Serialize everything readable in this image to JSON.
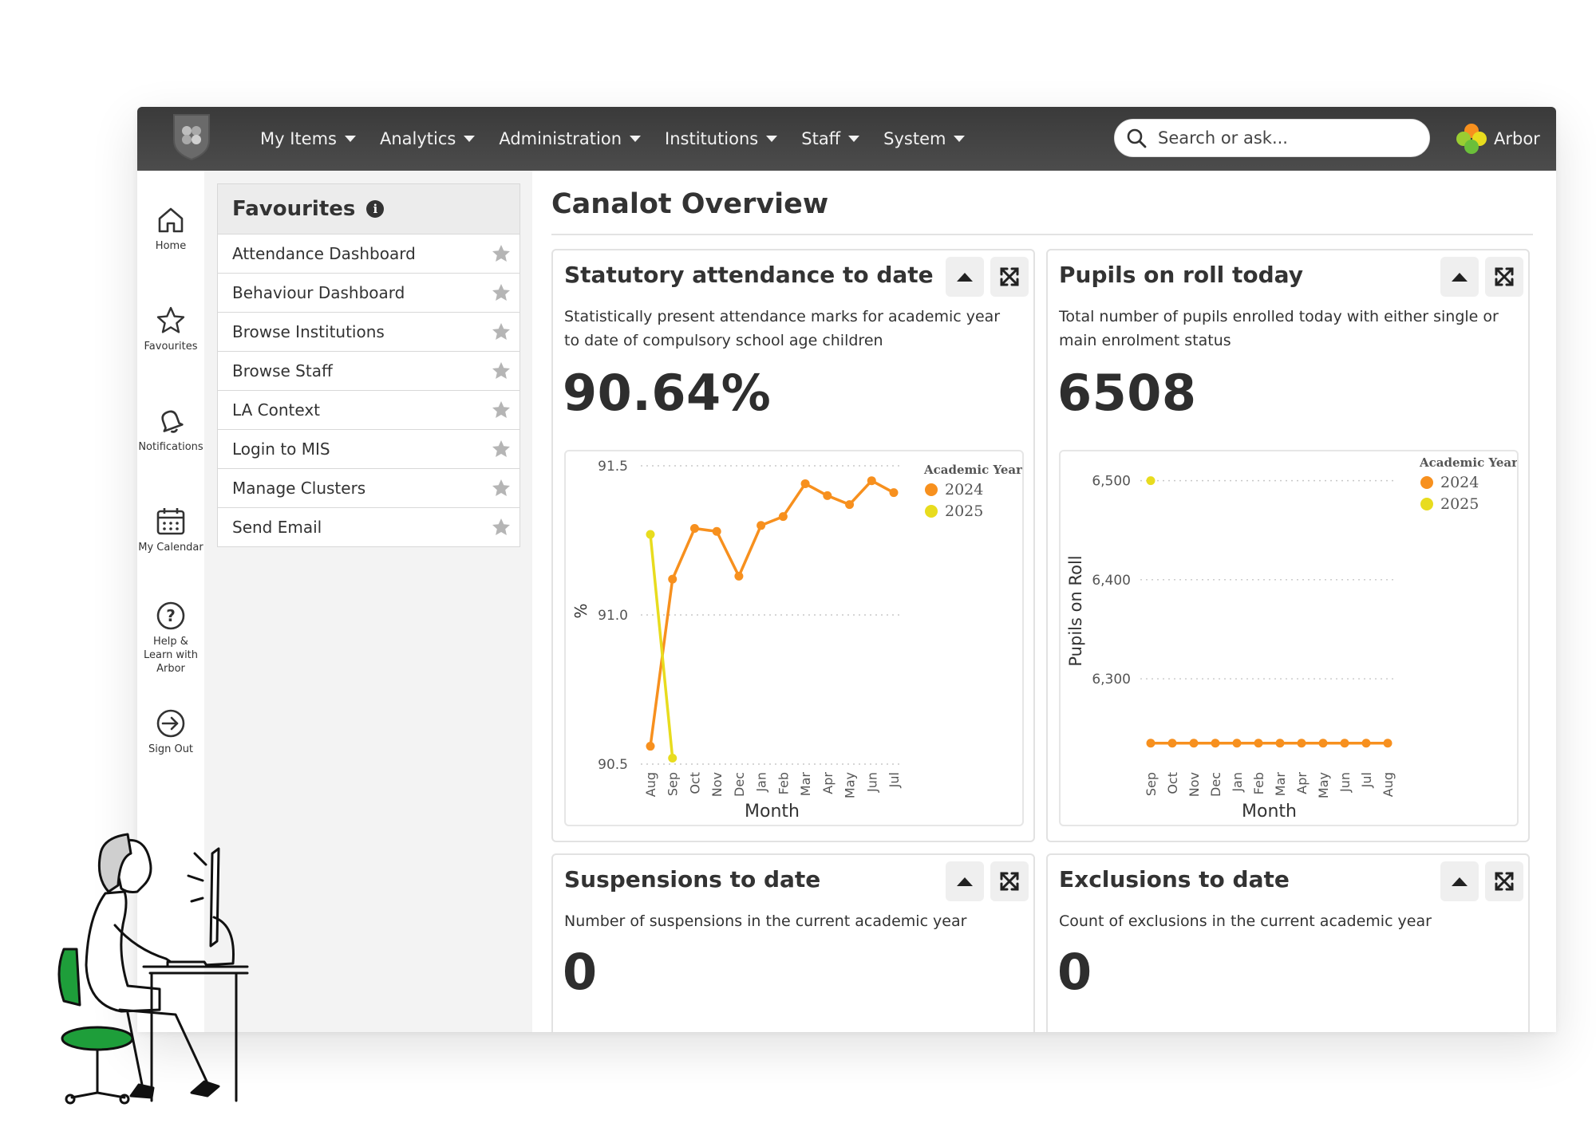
{
  "nav": {
    "items": [
      {
        "label": "My Items"
      },
      {
        "label": "Analytics"
      },
      {
        "label": "Administration"
      },
      {
        "label": "Institutions"
      },
      {
        "label": "Staff"
      },
      {
        "label": "System"
      }
    ],
    "search_placeholder": "Search or ask...",
    "brand": "Arbor"
  },
  "rail": {
    "items": [
      {
        "label": "Home",
        "icon": "home-icon"
      },
      {
        "label": "Favourites",
        "icon": "star-icon"
      },
      {
        "label": "Notifications",
        "icon": "bell-icon"
      },
      {
        "label": "My Calendar",
        "icon": "calendar-icon"
      },
      {
        "label": "Help & Learn with Arbor",
        "icon": "help-icon"
      },
      {
        "label": "Sign Out",
        "icon": "sign-out-icon"
      }
    ]
  },
  "favourites": {
    "title": "Favourites",
    "items": [
      {
        "label": "Attendance Dashboard"
      },
      {
        "label": "Behaviour Dashboard"
      },
      {
        "label": "Browse Institutions"
      },
      {
        "label": "Browse Staff"
      },
      {
        "label": "LA Context"
      },
      {
        "label": "Login to MIS"
      },
      {
        "label": "Manage Clusters"
      },
      {
        "label": "Send Email"
      }
    ]
  },
  "main": {
    "title": "Canalot Overview",
    "cards": [
      {
        "title": "Statutory attendance to date",
        "description": "Statistically present attendance marks for academic year to date of compulsory school age children",
        "value": "90.64%"
      },
      {
        "title": "Pupils on roll today",
        "description": "Total number of pupils enrolled today with either single or main enrolment status",
        "value": "6508"
      },
      {
        "title": "Suspensions to date",
        "description": "Number of suspensions in the current academic year",
        "value": "0"
      },
      {
        "title": "Exclusions to date",
        "description": "Count of exclusions in the current academic year",
        "value": "0"
      }
    ]
  },
  "colors": {
    "series_2024": "#f7901e",
    "series_2025": "#e8dc1e",
    "nav_bg": "#444444"
  },
  "chart_data": [
    {
      "type": "line",
      "xlabel": "Month",
      "ylabel": "%",
      "ylim": [
        90.5,
        91.5
      ],
      "yticks": [
        "90.5",
        "91.0",
        "91.5"
      ],
      "legend_title": "Academic Year",
      "legend_position": "top-right",
      "grid": true,
      "categories": [
        "Aug",
        "Sep",
        "Oct",
        "Nov",
        "Dec",
        "Jan",
        "Feb",
        "Mar",
        "Apr",
        "May",
        "Jun",
        "Jul"
      ],
      "series": [
        {
          "name": "2024",
          "values": [
            90.56,
            91.12,
            91.29,
            91.28,
            91.13,
            91.3,
            91.33,
            91.44,
            91.4,
            91.37,
            91.45,
            91.41
          ]
        },
        {
          "name": "2025",
          "values": [
            91.27,
            90.52,
            null,
            null,
            null,
            null,
            null,
            null,
            null,
            null,
            null,
            null
          ]
        }
      ]
    },
    {
      "type": "line",
      "xlabel": "Month",
      "ylabel": "Pupils on Roll",
      "ylim": [
        6230,
        6515
      ],
      "yticks": [
        "6,300",
        "6,400",
        "6,500"
      ],
      "legend_title": "Academic Year",
      "legend_position": "top-right",
      "grid": true,
      "categories": [
        "Sep",
        "Oct",
        "Nov",
        "Dec",
        "Jan",
        "Feb",
        "Mar",
        "Apr",
        "May",
        "Jun",
        "Jul",
        "Aug"
      ],
      "series": [
        {
          "name": "2024",
          "values": [
            6235,
            6235,
            6235,
            6235,
            6235,
            6235,
            6235,
            6235,
            6235,
            6235,
            6235,
            6235
          ]
        },
        {
          "name": "2025",
          "values": [
            6500,
            null,
            null,
            null,
            null,
            null,
            null,
            null,
            null,
            null,
            null,
            null
          ]
        }
      ]
    }
  ]
}
